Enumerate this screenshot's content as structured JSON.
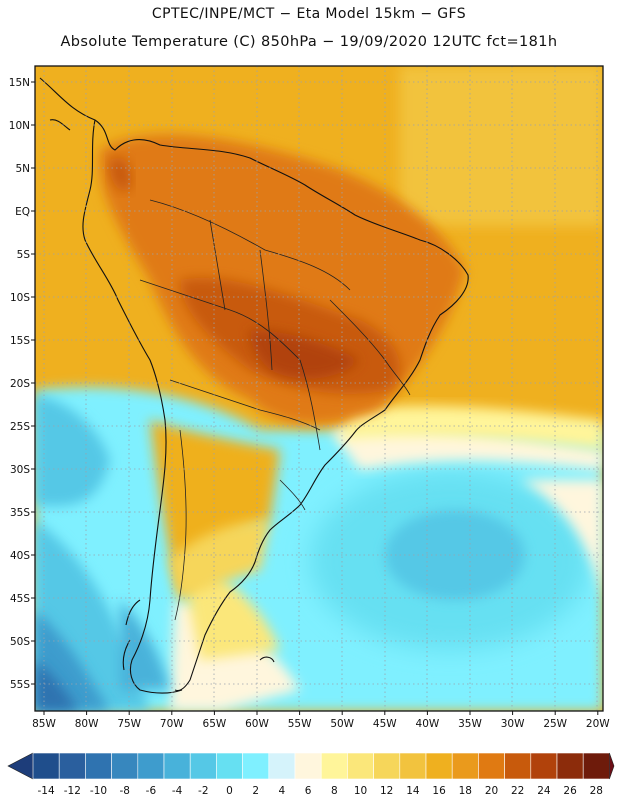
{
  "header": {
    "line1": "CPTEC/INPE/MCT −  Eta Model 15km − GFS",
    "line2": "Absolute Temperature (C) 850hPa − 19/09/2020 12UTC fct=181h"
  },
  "axes": {
    "lat_labels": [
      "15N",
      "10N",
      "5N",
      "EQ",
      "5S",
      "10S",
      "15S",
      "20S",
      "25S",
      "30S",
      "35S",
      "40S",
      "45S",
      "50S",
      "55S"
    ],
    "lon_labels": [
      "85W",
      "80W",
      "75W",
      "70W",
      "65W",
      "60W",
      "55W",
      "50W",
      "45W",
      "40W",
      "35W",
      "30W",
      "25W",
      "20W"
    ]
  },
  "colorbar": {
    "ticks": [
      "-14",
      "-12",
      "-10",
      "-8",
      "-6",
      "-4",
      "-2",
      "0",
      "2",
      "4",
      "6",
      "8",
      "10",
      "12",
      "14",
      "16",
      "18",
      "20",
      "22",
      "24",
      "26",
      "28"
    ],
    "colors": [
      "#1f4e8c",
      "#2a5f9e",
      "#2f73b0",
      "#3787be",
      "#3e9ccd",
      "#48b2da",
      "#55c8e6",
      "#66e0f2",
      "#7ff0ff",
      "#d5f3fb",
      "#fff6dd",
      "#fff59a",
      "#fbe77a",
      "#f6d65a",
      "#f2c33e",
      "#efb01f",
      "#ea9a1c",
      "#e07a12",
      "#c85a0c",
      "#b1420b",
      "#8c2c0b",
      "#6e1b0b"
    ],
    "low_cap_color": "#1d3d7a",
    "high_cap_color": "#6b0d16"
  }
}
